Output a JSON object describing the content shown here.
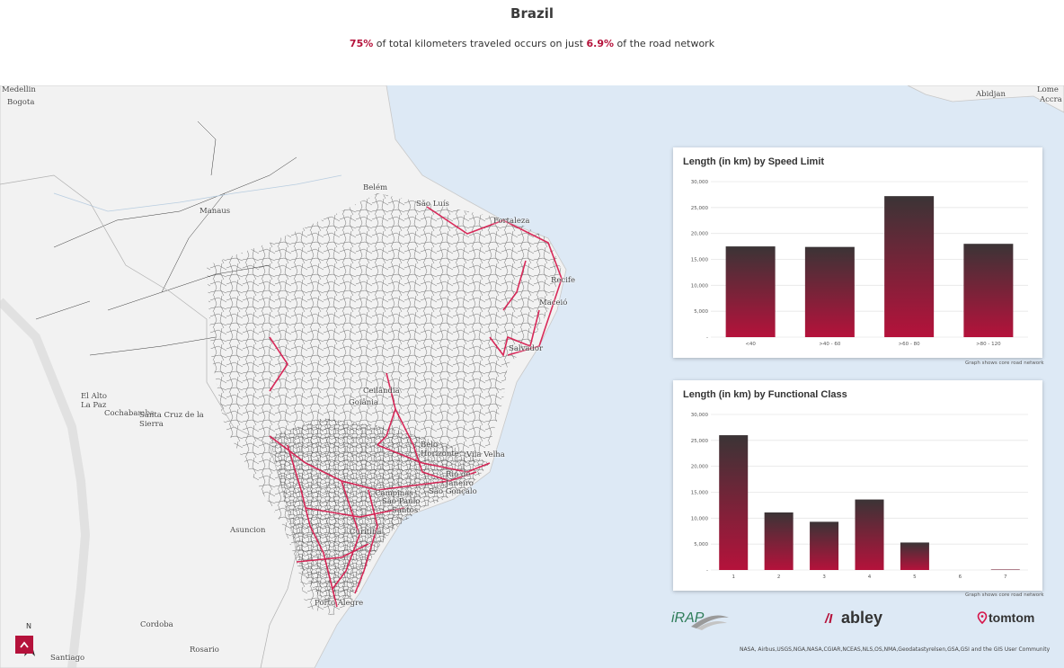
{
  "header": {
    "title": "Brazil",
    "subtitle_pct1": "75%",
    "subtitle_mid": " of total kilometers traveled occurs on just ",
    "subtitle_pct2": "6.9%",
    "subtitle_end": " of the road network"
  },
  "colors": {
    "accent": "#b5123b",
    "bar_top": "#3b3436",
    "bar_bottom": "#b5123b",
    "ocean": "#dde9f5",
    "land": "#f2f2f2",
    "road": "#2c2c2c",
    "core_road": "#d6154a"
  },
  "map_labels": {
    "medellin": "Medellin",
    "bogota": "Bogota",
    "manaus": "Manaus",
    "belem": "Belém",
    "saoluis": "São Luís",
    "fortaleza": "Fortaleza",
    "recife": "Recife",
    "maceio": "Maceió",
    "salvador": "Salvador",
    "ceilandia": "Ceilândia",
    "goiania": "Goiânia",
    "belo_horizonte": "Belo Horizonte",
    "vila_velha": "Vila Velha",
    "rio": "Rio de Janeiro",
    "campinas": "Campinas",
    "sao_paulo": "São Paulo",
    "sao_goncalo": "São Gonçalo",
    "santos": "Santos",
    "curitiba": "Curitiba",
    "porto_alegre": "Porto Alegre",
    "asuncion": "Asuncion",
    "el_alto": "El Alto",
    "la_paz": "La Paz",
    "cochabamba": "Cochabamba",
    "santa_cruz": "Santa Cruz de la Sierra",
    "cordoba": "Cordoba",
    "rosario": "Rosario",
    "santiago": "Santiago",
    "abidjan": "Abidjan",
    "lome": "Lome",
    "accra": "Accra"
  },
  "chart_data": [
    {
      "type": "bar",
      "title": "Length (in km) by Speed Limit",
      "categories": [
        "<40",
        ">40 - 60",
        ">60 - 80",
        ">80 - 120"
      ],
      "values": [
        17500,
        17400,
        27200,
        18000
      ],
      "ylim": [
        0,
        30000
      ],
      "yticks": [
        "30,000",
        "25,000",
        "20,000",
        "15,000",
        "10,000",
        "5,000",
        "-"
      ],
      "ytick_values": [
        30000,
        25000,
        20000,
        15000,
        10000,
        5000,
        0
      ],
      "grid": true,
      "footnote": "Graph shows core road network"
    },
    {
      "type": "bar",
      "title": "Length (in km) by Functional Class",
      "categories": [
        "1",
        "2",
        "3",
        "4",
        "5",
        "6",
        "7"
      ],
      "values": [
        26000,
        11100,
        9300,
        13600,
        5300,
        0,
        100
      ],
      "ylim": [
        0,
        30000
      ],
      "yticks": [
        "30,000",
        "25,000",
        "20,000",
        "15,000",
        "10,000",
        "5,000",
        "-"
      ],
      "ytick_values": [
        30000,
        25000,
        20000,
        15000,
        10000,
        5000,
        0
      ],
      "grid": true,
      "footnote": "Graph shows core road network"
    }
  ],
  "logos": {
    "irap": "iRAP",
    "abley": "abley",
    "tomtom": "tomtom"
  },
  "attribution": "NASA, Airbus,USGS,NGA,NASA,CGIAR,NCEAS,NLS,OS,NMA,Geodatastyrelsen,GSA,GSI and the GIS User Community",
  "north_label": "N",
  "scroll_up_icon": "chevron-up-icon"
}
